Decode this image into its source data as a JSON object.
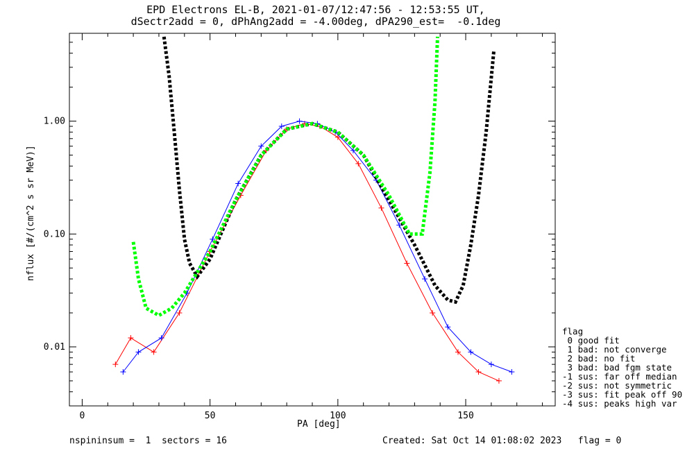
{
  "title": {
    "line1": "EPD Electrons EL-B, 2021-01-07/12:47:56 - 12:53:55 UT,",
    "line2": "dSectr2add = 0, dPhAng2add = -4.00deg, dPA290_est=  -0.1deg"
  },
  "footer": {
    "left": "nspininsum =  1  sectors = 16",
    "right": "Created: Sat Oct 14 01:08:02 2023   flag = 0"
  },
  "legend": {
    "heading": "flag",
    "items": [
      " 0 good fit",
      " 1 bad: not converge",
      " 2 bad: no fit",
      " 3 bad: bad fgm state",
      "-1 sus: far off median",
      "-2 sus: not symmetric",
      "-3 sus: fit peak off 90",
      "-4 sus: peaks high var"
    ]
  },
  "chart_data": {
    "type": "line",
    "xlabel": "PA [deg]",
    "ylabel": "nflux [#/(cm^2 s sr MeV)]",
    "xlim": [
      -5,
      185
    ],
    "ylim": [
      0.003,
      6.0
    ],
    "yscale": "log",
    "xticks": [
      0,
      50,
      100,
      150
    ],
    "yticks": [
      0.01,
      0.1,
      1.0
    ],
    "ytick_labels": [
      "0.01",
      "0.10",
      "1.00"
    ],
    "colors": {
      "data_red": "#ff0000",
      "data_blue": "#0000ff",
      "fit_black": "#000000",
      "fit_green": "#00ff00"
    },
    "series": [
      {
        "color": "#ff0000",
        "x": [
          13,
          19,
          28,
          38,
          50,
          62,
          72,
          80,
          87,
          93,
          100,
          108,
          117,
          127,
          137,
          147,
          155,
          163
        ],
        "y": [
          0.007,
          0.012,
          0.009,
          0.02,
          0.07,
          0.22,
          0.55,
          0.85,
          0.95,
          0.9,
          0.72,
          0.42,
          0.17,
          0.055,
          0.02,
          0.009,
          0.006,
          0.005
        ]
      },
      {
        "color": "#0000ff",
        "x": [
          16,
          22,
          31,
          41,
          51,
          61,
          70,
          78,
          85,
          92,
          99,
          106,
          115,
          124,
          134,
          143,
          152,
          160,
          168
        ],
        "y": [
          0.006,
          0.009,
          0.012,
          0.03,
          0.09,
          0.28,
          0.6,
          0.9,
          1.0,
          0.95,
          0.8,
          0.55,
          0.3,
          0.12,
          0.04,
          0.015,
          0.009,
          0.007,
          0.006
        ]
      },
      {
        "color": "#000000",
        "x": [
          32,
          34,
          36,
          38,
          40,
          42,
          45,
          50,
          60,
          70,
          80,
          90,
          100,
          110,
          120,
          130,
          138,
          143,
          146,
          149,
          152,
          155,
          158,
          161
        ],
        "y": [
          5.6,
          2.5,
          0.8,
          0.25,
          0.09,
          0.055,
          0.042,
          0.06,
          0.2,
          0.5,
          0.85,
          0.95,
          0.8,
          0.5,
          0.2,
          0.08,
          0.035,
          0.026,
          0.025,
          0.035,
          0.08,
          0.22,
          0.8,
          4.2
        ]
      },
      {
        "color": "#00ff00",
        "x": [
          20,
          22,
          25,
          30,
          35,
          40,
          50,
          60,
          70,
          80,
          90,
          100,
          110,
          120,
          128,
          133,
          136,
          138,
          139
        ],
        "y": [
          0.085,
          0.04,
          0.022,
          0.019,
          0.022,
          0.03,
          0.07,
          0.2,
          0.5,
          0.85,
          0.95,
          0.8,
          0.5,
          0.22,
          0.1,
          0.1,
          0.35,
          1.5,
          5.6
        ]
      }
    ]
  }
}
